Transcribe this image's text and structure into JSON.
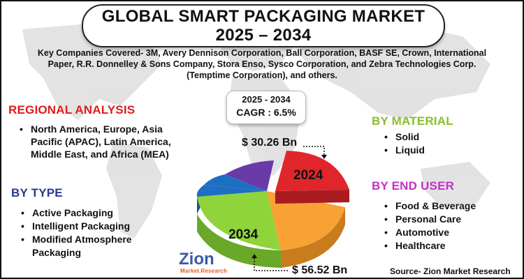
{
  "header": {
    "title_line1": "GLOBAL SMART PACKAGING MARKET",
    "title_line2": "2025 – 2034"
  },
  "companies": "Key Companies Covered- 3M, Avery Dennison Corporation, Ball Corporation, BASF SE, Crown, International Paper, R.R. Donnelley & Sons Company, Stora Enso, Sysco Corporation, and Zebra Technologies Corp. (Temptime Corporation), and others.",
  "cagr": {
    "period": "2025 - 2034",
    "label": "CAGR : 6.5%"
  },
  "regional": {
    "heading": "REGIONAL ANALYSIS",
    "items": [
      "North America, Europe, Asia Pacific (APAC), Latin America, Middle East, and Africa (MEA)"
    ]
  },
  "type": {
    "heading": "BY TYPE",
    "items": [
      "Active Packaging",
      "Intelligent Packaging",
      "Modified Atmosphere Packaging"
    ]
  },
  "material": {
    "heading": "BY MATERIAL",
    "items": [
      "Solid",
      "Liquid"
    ]
  },
  "end_user": {
    "heading": "BY END USER",
    "items": [
      "Food & Beverage",
      "Personal Care",
      "Automotive",
      "Healthcare"
    ]
  },
  "market_values": {
    "value_2024": "$ 30.26 Bn",
    "value_2034": "$ 56.52 Bn",
    "label_2024": "2024",
    "label_2034": "2034"
  },
  "pie_colors": {
    "red": "#e0262b",
    "orange": "#f7a233",
    "green": "#8fd43a",
    "blue": "#1e6fc4",
    "purple": "#6a3aa8"
  },
  "logo": {
    "name": "Zion",
    "sub": "Market.Research"
  },
  "source": "Source- Zion Market Research"
}
